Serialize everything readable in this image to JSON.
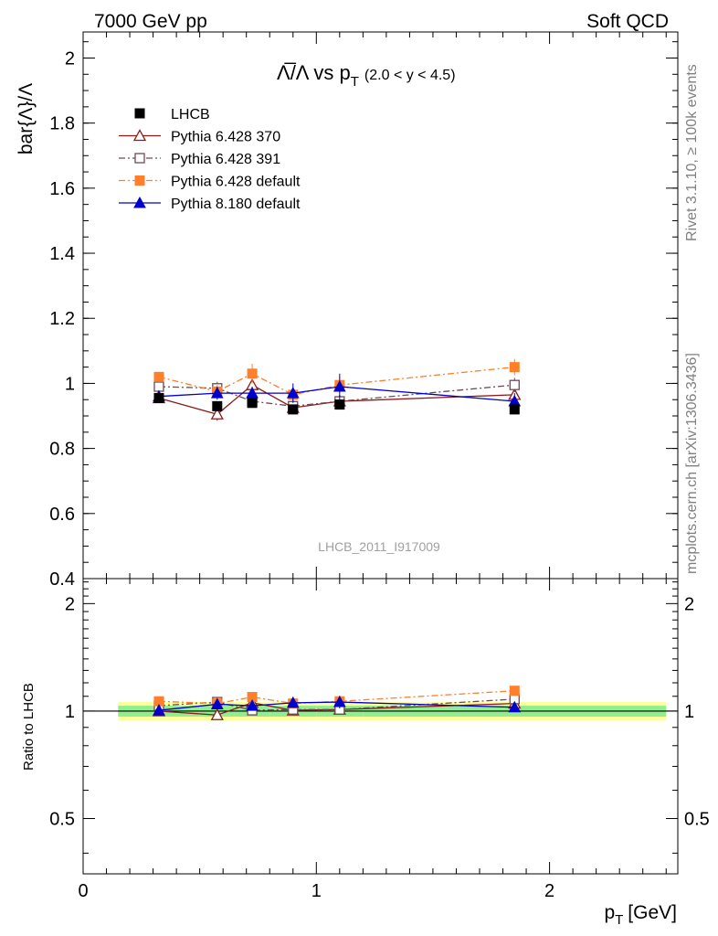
{
  "header": {
    "left": "7000 GeV pp",
    "right": "Soft QCD"
  },
  "side_labels": {
    "rivet": "Rivet 3.1.10, ≥ 100k events",
    "mcplots": "mcplots.cern.ch [arXiv:1306.3436]"
  },
  "chart_data": {
    "type": "scatter",
    "title_main": "Λ̅/Λ vs p",
    "title_sub": "T",
    "title_range": "(2.0 < y < 4.5)",
    "ylabel": "bar{Λ}/Λ",
    "ratio_ylabel": "Ratio to LHCB",
    "xlabel_main": "p",
    "xlabel_sub": "T",
    "xlabel_unit": "[GeV]",
    "analysis_id": "LHCB_2011_I917009",
    "xlim": [
      0,
      2.55
    ],
    "ylim": [
      0.4,
      2.08
    ],
    "ratio_ylim": [
      0.35,
      2.35
    ],
    "x_ticks": [
      "0",
      "1",
      "2"
    ],
    "x_tick_values": [
      0,
      1,
      2
    ],
    "y_ticks": [
      "0.4",
      "0.6",
      "0.8",
      "1",
      "1.2",
      "1.4",
      "1.6",
      "1.8",
      "2"
    ],
    "y_tick_values": [
      0.4,
      0.6,
      0.8,
      1.0,
      1.2,
      1.4,
      1.6,
      1.8,
      2.0
    ],
    "ratio_ticks": [
      "0.5",
      "1",
      "2"
    ],
    "ratio_tick_values": [
      0.5,
      1.0,
      2.0
    ],
    "legend_position": "top-left",
    "x": [
      0.325,
      0.575,
      0.725,
      0.9,
      1.1,
      1.85
    ],
    "x_bins": [
      [
        0.15,
        0.5
      ],
      [
        0.5,
        0.65
      ],
      [
        0.65,
        0.8
      ],
      [
        0.8,
        1.0
      ],
      [
        1.0,
        1.2
      ],
      [
        1.2,
        2.5
      ]
    ],
    "series": [
      {
        "name": "LHCB",
        "color": "#000000",
        "marker": "filled-square",
        "line": "none",
        "values": [
          0.955,
          0.93,
          0.94,
          0.92,
          0.935,
          0.92
        ],
        "errors": [
          0.01,
          0.01,
          0.01,
          0.01,
          0.01,
          0.01
        ],
        "ratio": [
          1.0,
          1.0,
          1.0,
          1.0,
          1.0,
          1.0
        ],
        "band_inner": [
          0.035,
          0.035,
          0.035,
          0.035,
          0.035,
          0.035
        ],
        "band_outer": [
          0.06,
          0.06,
          0.06,
          0.06,
          0.06,
          0.06
        ]
      },
      {
        "name": "Pythia 6.428 370",
        "color": "#8b1a1a",
        "marker": "open-triangle",
        "line": "solid",
        "values": [
          0.955,
          0.905,
          0.995,
          0.925,
          0.945,
          0.965
        ],
        "errors": [
          0.012,
          0.02,
          0.02,
          0.018,
          0.02,
          0.022
        ],
        "ratio": [
          1.0,
          0.975,
          1.055,
          1.005,
          1.01,
          1.05
        ]
      },
      {
        "name": "Pythia 6.428 391",
        "color": "#6e4a55",
        "marker": "open-square",
        "line": "dash-dot",
        "values": [
          0.99,
          0.985,
          0.945,
          0.93,
          0.945,
          0.995
        ],
        "errors": [
          0.012,
          0.02,
          0.02,
          0.018,
          0.02,
          0.022
        ],
        "ratio": [
          1.035,
          1.06,
          1.005,
          1.01,
          1.01,
          1.08
        ]
      },
      {
        "name": "Pythia 6.428 default",
        "color": "#ff7f2a",
        "marker": "filled-square",
        "line": "dash-dot",
        "values": [
          1.02,
          0.975,
          1.03,
          0.965,
          0.995,
          1.05
        ],
        "errors": [
          0.015,
          0.02,
          0.03,
          0.02,
          0.025,
          0.025
        ],
        "ratio": [
          1.065,
          1.05,
          1.095,
          1.05,
          1.065,
          1.14
        ]
      },
      {
        "name": "Pythia 8.180 default",
        "color": "#0000cc",
        "marker": "filled-triangle",
        "line": "solid",
        "values": [
          0.96,
          0.97,
          0.97,
          0.97,
          0.99,
          0.945
        ],
        "errors": [
          0.012,
          0.02,
          0.02,
          0.03,
          0.04,
          0.025
        ],
        "ratio": [
          1.005,
          1.045,
          1.035,
          1.055,
          1.06,
          1.025
        ]
      }
    ]
  }
}
